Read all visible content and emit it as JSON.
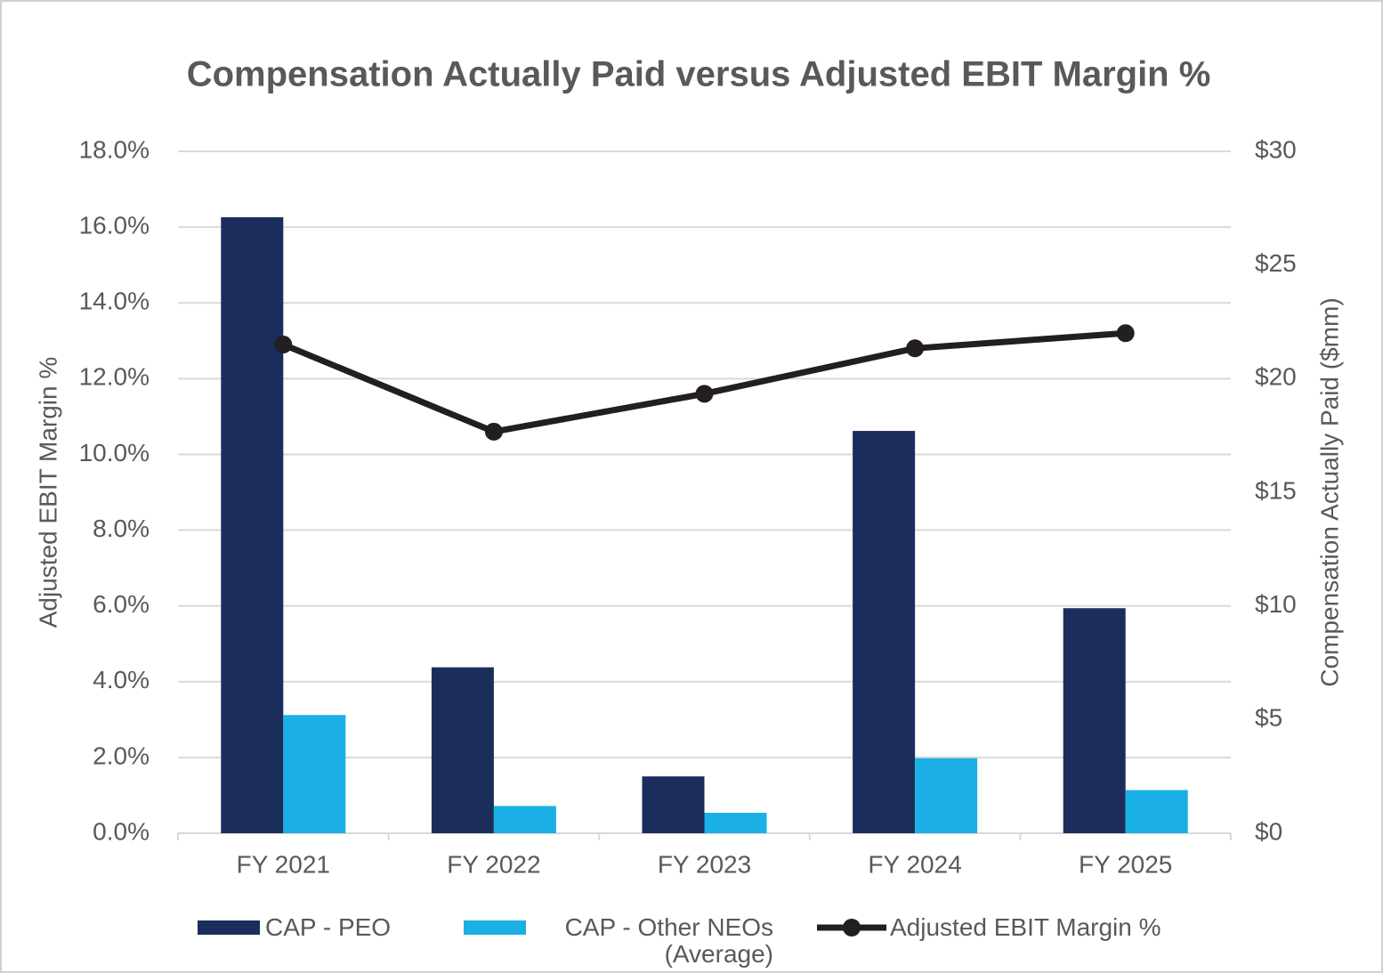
{
  "chart_data": {
    "type": "bar",
    "title": "Compensation Actually Paid versus Adjusted EBIT Margin %",
    "y_label": "Adjusted EBIT Margin %",
    "y2_label": "Compensation Actually Paid ($mm)",
    "categories": [
      "FY 2021",
      "FY 2022",
      "FY 2023",
      "FY 2024",
      "FY 2025"
    ],
    "series": [
      {
        "name": "CAP - PEO",
        "type": "bar",
        "axis": "y2",
        "color": "#1b2d5b",
        "values": [
          27.1,
          7.3,
          2.5,
          17.7,
          9.9
        ]
      },
      {
        "name": "CAP - Other NEOs (Average)",
        "type": "bar",
        "axis": "y2",
        "color": "#1ab0e5",
        "values": [
          5.2,
          1.2,
          0.9,
          3.3,
          1.9
        ]
      },
      {
        "name": "Adjusted EBIT Margin %",
        "type": "line",
        "axis": "y",
        "color": "#231f20",
        "values": [
          12.9,
          10.6,
          11.6,
          12.8,
          13.2
        ]
      }
    ],
    "ylim": [
      0,
      18
    ],
    "yticks": [
      {
        "value": 0,
        "label": "0.0%"
      },
      {
        "value": 2,
        "label": "2.0%"
      },
      {
        "value": 4,
        "label": "4.0%"
      },
      {
        "value": 6,
        "label": "6.0%"
      },
      {
        "value": 8,
        "label": "8.0%"
      },
      {
        "value": 10,
        "label": "10.0%"
      },
      {
        "value": 12,
        "label": "12.0%"
      },
      {
        "value": 14,
        "label": "14.0%"
      },
      {
        "value": 16,
        "label": "16.0%"
      },
      {
        "value": 18,
        "label": "18.0%"
      }
    ],
    "y2lim": [
      0,
      30
    ],
    "y2ticks": [
      {
        "value": 0,
        "label": "$0"
      },
      {
        "value": 5,
        "label": "$5"
      },
      {
        "value": 10,
        "label": "$10"
      },
      {
        "value": 15,
        "label": "$15"
      },
      {
        "value": 20,
        "label": "$20"
      },
      {
        "value": 25,
        "label": "$25"
      },
      {
        "value": 30,
        "label": "$30"
      }
    ],
    "grid": true,
    "legend": "bottom"
  }
}
